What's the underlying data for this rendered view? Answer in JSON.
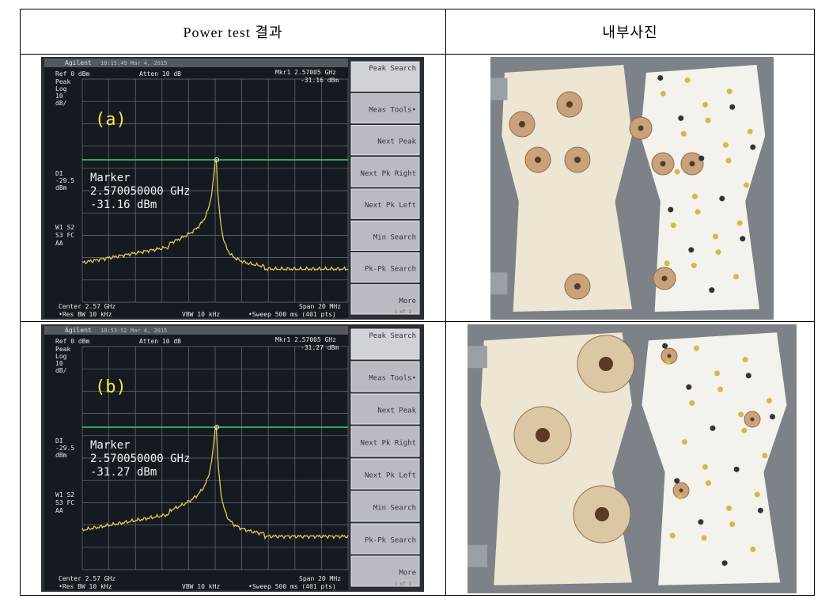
{
  "header": [
    "Power test 결과",
    "내부사진"
  ],
  "rows": [
    {
      "screen": {
        "brand": "Agilent",
        "time": "10:15:49 Mar 4, 2015",
        "ref": "Ref 0 dBm",
        "atten": "Atten 10 dB",
        "mkr": "Mkr1 2.57005 GHz",
        "mkr_val": "-31.16 dBm",
        "left": [
          "Peak",
          "Log",
          "10",
          "dB/"
        ],
        "dl": [
          "DI",
          "-29.5",
          "dBm"
        ],
        "ws": [
          "W1 S2",
          "S3 FC",
          "AA"
        ],
        "center": "Center 2.57 GHz",
        "res_bw": "•Res BW 10 kHz",
        "vbw": "VBW 10 kHz",
        "span": "Span 20 MHz",
        "sweep": "•Sweep 500 ms (401 pts)",
        "label": "(a)",
        "marker": [
          "Marker",
          "2.570050000 GHz",
          "-31.16 dBm"
        ],
        "softkeys": [
          "Peak Search",
          "Meas Tools•",
          "Next Peak",
          "Next Pk Right",
          "Next Pk Left",
          "Min Search",
          "Pk-Pk Search",
          "More"
        ],
        "page": "1 of 2"
      }
    },
    {
      "screen": {
        "brand": "Agilent",
        "time": "10:53:52 Mar 4, 2015",
        "ref": "Ref 0 dBm",
        "atten": "Atten 10 dB",
        "mkr": "Mkr1 2.57005 GHz",
        "mkr_val": "-31.27 dBm",
        "left": [
          "Peak",
          "Log",
          "10",
          "dB/"
        ],
        "dl": [
          "DI",
          "-29.5",
          "dBm"
        ],
        "ws": [
          "W1 S2",
          "S3 FC",
          "AA"
        ],
        "center": "Center 2.57 GHz",
        "res_bw": "•Res BW 10 kHz",
        "vbw": "VBW 10 kHz",
        "span": "Span 20 MHz",
        "sweep": "•Sweep 500 ms (401 pts)",
        "label": "(b)",
        "marker": [
          "Marker",
          "2.570050000 GHz",
          "-31.27 dBm"
        ],
        "softkeys": [
          "Peak Search",
          "Meas Tools•",
          "Next Peak",
          "Next Pk Right",
          "Next Pk Left",
          "Min Search",
          "Pk-Pk Search",
          "More"
        ],
        "page": "1 of 2"
      }
    }
  ]
}
